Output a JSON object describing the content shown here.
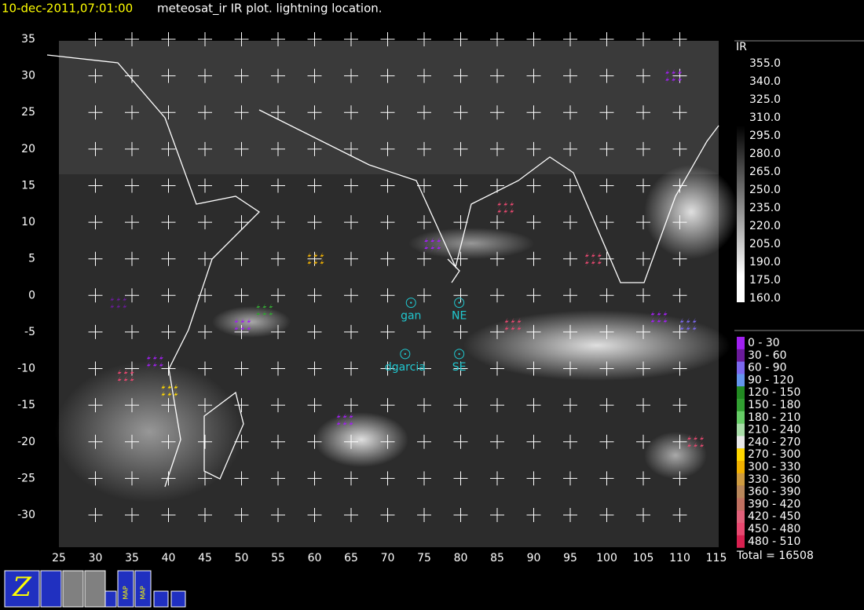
{
  "header": {
    "time": "10-dec-2011,07:01:00",
    "title": "meteosat_ir IR  plot.  lightning location."
  },
  "map": {
    "lon_ticks": [
      25,
      30,
      35,
      40,
      45,
      50,
      55,
      60,
      65,
      70,
      75,
      80,
      85,
      90,
      95,
      100,
      105,
      110,
      115
    ],
    "lat_ticks": [
      35,
      30,
      25,
      20,
      15,
      10,
      5,
      0,
      -5,
      -10,
      -15,
      -20,
      -25,
      -30
    ],
    "stations": [
      {
        "label": "gan",
        "lon": 73.2,
        "lat": -1
      },
      {
        "label": "NE",
        "lon": 79.8,
        "lat": -1
      },
      {
        "label": "dgarcia",
        "lon": 72.4,
        "lat": -8
      },
      {
        "label": "SE",
        "lon": 79.8,
        "lat": -8
      }
    ],
    "lightning": [
      {
        "lon": 34,
        "lat": -11,
        "color": "#e84870"
      },
      {
        "lon": 38,
        "lat": -9,
        "color": "#a020f0"
      },
      {
        "lon": 40,
        "lat": -13,
        "color": "#ffd700"
      },
      {
        "lon": 33,
        "lat": -1,
        "color": "#6a1b9a"
      },
      {
        "lon": 50,
        "lat": -4,
        "color": "#a020f0"
      },
      {
        "lon": 53,
        "lat": -2,
        "color": "#32a032"
      },
      {
        "lon": 64,
        "lat": -17,
        "color": "#a020f0"
      },
      {
        "lon": 76,
        "lat": 7,
        "color": "#a020f0"
      },
      {
        "lon": 86,
        "lat": 12,
        "color": "#e84870"
      },
      {
        "lon": 60,
        "lat": 5,
        "color": "#f0b000"
      },
      {
        "lon": 87,
        "lat": -4,
        "color": "#e84870"
      },
      {
        "lon": 107,
        "lat": -3,
        "color": "#a020f0"
      },
      {
        "lon": 111,
        "lat": -4,
        "color": "#7b68ee"
      },
      {
        "lon": 112,
        "lat": -20,
        "color": "#e84870"
      },
      {
        "lon": 98,
        "lat": 5,
        "color": "#e84870"
      },
      {
        "lon": 109,
        "lat": 30,
        "color": "#a020f0"
      }
    ]
  },
  "ir_scale": {
    "title": "IR",
    "labels": [
      "355.0",
      "340.0",
      "325.0",
      "310.0",
      "295.0",
      "280.0",
      "265.0",
      "250.0",
      "235.0",
      "220.0",
      "205.0",
      "190.0",
      "175.0",
      "160.0"
    ]
  },
  "lightning_legend": {
    "items": [
      {
        "label": "0 - 30",
        "color": "#a020f0"
      },
      {
        "label": "30 - 60",
        "color": "#6a1b9a"
      },
      {
        "label": "60 - 90",
        "color": "#7b68ee"
      },
      {
        "label": "90 - 120",
        "color": "#6495ed"
      },
      {
        "label": "120 - 150",
        "color": "#228b22"
      },
      {
        "label": "150 - 180",
        "color": "#32a032"
      },
      {
        "label": "180 - 210",
        "color": "#66cc66"
      },
      {
        "label": "210 - 240",
        "color": "#a8dca8"
      },
      {
        "label": "240 - 270",
        "color": "#e8e8e8"
      },
      {
        "label": "270 - 300",
        "color": "#ffd700"
      },
      {
        "label": "300 - 330",
        "color": "#f0b000"
      },
      {
        "label": "330 - 360",
        "color": "#cd9a40"
      },
      {
        "label": "360 - 390",
        "color": "#b8865a"
      },
      {
        "label": "390 - 420",
        "color": "#c07060"
      },
      {
        "label": "420 - 450",
        "color": "#e0607a"
      },
      {
        "label": "450 - 480",
        "color": "#e84870"
      },
      {
        "label": "480 - 510",
        "color": "#d82050"
      }
    ],
    "total": "Total = 16508"
  },
  "toolbar": {
    "logo": "Z",
    "map_buttons": [
      "MAP",
      "MAP"
    ]
  }
}
